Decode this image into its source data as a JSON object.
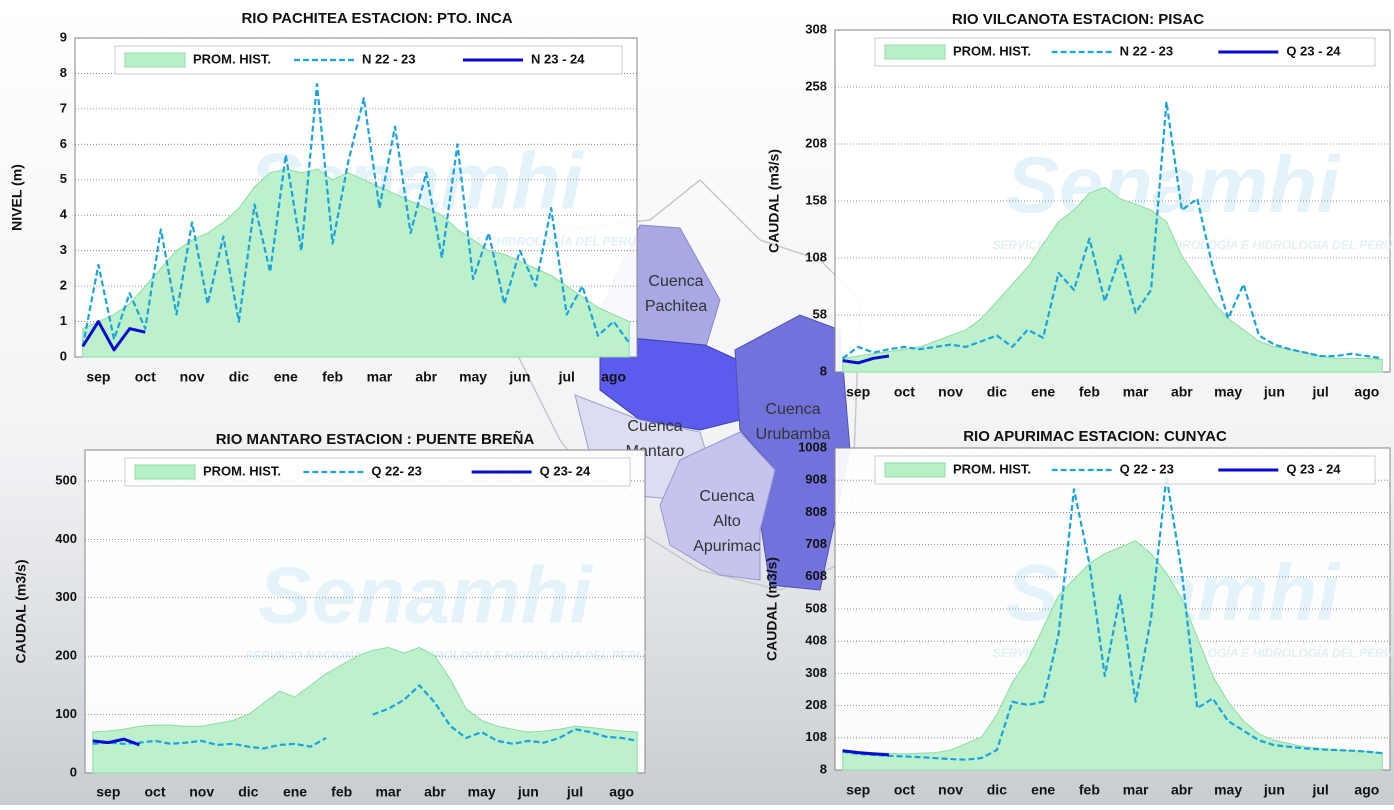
{
  "watermark": {
    "name": "Senamhi",
    "org": "SERVICIO NACIONAL DE METEOROLOGÍA E HIDROLOGÍA DEL PERÚ"
  },
  "map": {
    "labels": [
      [
        "Cuenca",
        "Pachitea"
      ],
      [
        "Cuenca",
        "Urubamba"
      ],
      [
        "Cuenca",
        "Mantaro"
      ],
      [
        "Cuenca",
        "Alto",
        "Apurimac"
      ]
    ]
  },
  "chart_data": [
    {
      "type": "line",
      "title": "RIO PACHITEA ESTACION: PTO. INCA",
      "y_label": "NIVEL (m)",
      "categories": [
        null,
        "sep",
        null,
        null,
        "oct",
        null,
        null,
        "nov",
        null,
        null,
        "dic",
        null,
        null,
        "ene",
        null,
        null,
        "feb",
        null,
        null,
        "mar",
        null,
        null,
        "abr",
        null,
        null,
        "may",
        null,
        null,
        "jun",
        null,
        null,
        "jul",
        null,
        null,
        "ago",
        null
      ],
      "ylim": [
        0,
        9
      ],
      "yticks": [
        0,
        1,
        2,
        3,
        4,
        5,
        6,
        7,
        8,
        9
      ],
      "grid": true,
      "series": [
        {
          "name": "PROM. HIST.",
          "style": "area",
          "color": "#b8f0c8",
          "values": [
            0.8,
            1.0,
            1.2,
            1.5,
            2.0,
            2.5,
            3.0,
            3.3,
            3.5,
            3.8,
            4.2,
            4.8,
            5.2,
            5.3,
            5.2,
            5.3,
            5.0,
            5.2,
            5.0,
            4.8,
            4.6,
            4.4,
            4.2,
            4.0,
            3.6,
            3.3,
            3.0,
            2.9,
            2.7,
            2.5,
            2.3,
            2.0,
            1.7,
            1.4,
            1.2,
            1.0
          ]
        },
        {
          "name": "N 22 - 23",
          "style": "dashed",
          "color": "#1ba3e0",
          "values": [
            0.3,
            2.6,
            0.5,
            1.8,
            0.8,
            3.6,
            1.2,
            3.8,
            1.5,
            3.4,
            1.0,
            4.3,
            2.4,
            5.7,
            3.0,
            7.7,
            3.2,
            5.5,
            7.3,
            4.2,
            6.5,
            3.5,
            5.2,
            2.8,
            6.0,
            2.2,
            3.5,
            1.5,
            3.0,
            2.0,
            4.2,
            1.2,
            2.0,
            0.6,
            1.0,
            0.4
          ]
        },
        {
          "name": "N 23 - 24",
          "style": "solid",
          "color": "#0a0ad0",
          "values": [
            0.3,
            1.0,
            0.2,
            0.8,
            0.7,
            null,
            null,
            null,
            null,
            null,
            null,
            null,
            null,
            null,
            null,
            null,
            null,
            null,
            null,
            null,
            null,
            null,
            null,
            null,
            null,
            null,
            null,
            null,
            null,
            null,
            null,
            null,
            null,
            null,
            null,
            null
          ]
        }
      ]
    },
    {
      "type": "line",
      "title": "RIO VILCANOTA ESTACION: PISAC",
      "y_label": "CAUDAL (m3/s)",
      "categories": [
        null,
        "sep",
        null,
        null,
        "oct",
        null,
        null,
        "nov",
        null,
        null,
        "dic",
        null,
        null,
        "ene",
        null,
        null,
        "feb",
        null,
        null,
        "mar",
        null,
        null,
        "abr",
        null,
        null,
        "may",
        null,
        null,
        "jun",
        null,
        null,
        "jul",
        null,
        null,
        "ago",
        null
      ],
      "ylim": [
        8,
        308
      ],
      "yticks": [
        8,
        58,
        108,
        158,
        208,
        258,
        308
      ],
      "grid": true,
      "series": [
        {
          "name": "PROM. HIST.",
          "style": "area",
          "color": "#b8f0c8",
          "values": [
            20,
            22,
            24,
            26,
            28,
            30,
            35,
            40,
            45,
            55,
            70,
            85,
            100,
            120,
            140,
            150,
            165,
            170,
            160,
            155,
            150,
            140,
            110,
            90,
            70,
            55,
            45,
            35,
            30,
            28,
            25,
            22,
            20,
            20,
            20,
            19
          ]
        },
        {
          "name": "N 22 - 23",
          "style": "dashed",
          "color": "#1ba3e0",
          "values": [
            20,
            30,
            25,
            28,
            30,
            28,
            30,
            32,
            30,
            35,
            40,
            30,
            45,
            38,
            95,
            80,
            125,
            70,
            110,
            60,
            80,
            245,
            150,
            160,
            100,
            55,
            85,
            40,
            32,
            28,
            25,
            22,
            22,
            24,
            22,
            20
          ]
        },
        {
          "name": "Q 23 - 24",
          "style": "solid",
          "color": "#0a0ad0",
          "values": [
            18,
            16,
            20,
            22,
            null,
            null,
            null,
            null,
            null,
            null,
            null,
            null,
            null,
            null,
            null,
            null,
            null,
            null,
            null,
            null,
            null,
            null,
            null,
            null,
            null,
            null,
            null,
            null,
            null,
            null,
            null,
            null,
            null,
            null,
            null,
            null
          ]
        }
      ]
    },
    {
      "type": "line",
      "title": "RIO MANTARO ESTACION : PUENTE BREÑA",
      "y_label": "CAUDAL (m3/s)",
      "categories": [
        null,
        "sep",
        null,
        null,
        "oct",
        null,
        null,
        "nov",
        null,
        null,
        "dic",
        null,
        null,
        "ene",
        null,
        null,
        "feb",
        null,
        null,
        "mar",
        null,
        null,
        "abr",
        null,
        null,
        "may",
        null,
        null,
        "jun",
        null,
        null,
        "jul",
        null,
        null,
        "ago",
        null
      ],
      "ylim": [
        0,
        553
      ],
      "yticks": [
        0,
        100,
        200,
        300,
        400,
        500
      ],
      "grid": true,
      "series": [
        {
          "name": "PROM. HIST.",
          "style": "area",
          "color": "#b8f0c8",
          "values": [
            70,
            72,
            75,
            80,
            82,
            82,
            80,
            80,
            85,
            90,
            100,
            120,
            140,
            130,
            150,
            170,
            185,
            200,
            210,
            215,
            205,
            215,
            200,
            160,
            110,
            90,
            80,
            75,
            70,
            72,
            75,
            80,
            78,
            75,
            72,
            70
          ]
        },
        {
          "name": "Q 22- 23",
          "style": "dashed",
          "color": "#1ba3e0",
          "values": [
            50,
            52,
            50,
            52,
            55,
            50,
            52,
            55,
            48,
            50,
            45,
            42,
            48,
            50,
            45,
            60,
            null,
            null,
            100,
            110,
            125,
            150,
            120,
            80,
            60,
            70,
            55,
            50,
            55,
            52,
            60,
            75,
            70,
            62,
            60,
            55
          ]
        },
        {
          "name": "Q 23- 24",
          "style": "solid",
          "color": "#0a0ad0",
          "values": [
            55,
            52,
            58,
            48,
            null,
            null,
            null,
            null,
            null,
            null,
            null,
            null,
            null,
            null,
            null,
            null,
            null,
            null,
            null,
            null,
            null,
            null,
            null,
            null,
            null,
            null,
            null,
            null,
            null,
            null,
            null,
            null,
            null,
            null,
            null,
            null
          ]
        }
      ]
    },
    {
      "type": "line",
      "title": "RIO APURIMAC ESTACION: CUNYAC",
      "y_label": "CAUDAL (m3/s)",
      "categories": [
        null,
        "sep",
        null,
        null,
        "oct",
        null,
        null,
        "nov",
        null,
        null,
        "dic",
        null,
        null,
        "ene",
        null,
        null,
        "feb",
        null,
        null,
        "mar",
        null,
        null,
        "abr",
        null,
        null,
        "may",
        null,
        null,
        "jun",
        null,
        null,
        "jul",
        null,
        null,
        "ago",
        null
      ],
      "ylim": [
        8,
        1008
      ],
      "yticks": [
        8,
        108,
        208,
        308,
        408,
        508,
        608,
        708,
        808,
        908,
        1008
      ],
      "grid": true,
      "series": [
        {
          "name": "PROM. HIST.",
          "style": "area",
          "color": "#b8f0c8",
          "values": [
            70,
            65,
            62,
            60,
            58,
            60,
            62,
            70,
            90,
            110,
            180,
            280,
            350,
            450,
            550,
            600,
            650,
            680,
            700,
            720,
            680,
            620,
            540,
            420,
            300,
            220,
            160,
            120,
            100,
            90,
            80,
            75,
            70,
            68,
            65,
            62
          ]
        },
        {
          "name": "Q 22 - 23",
          "style": "dashed",
          "color": "#1ba3e0",
          "values": [
            65,
            58,
            55,
            52,
            50,
            48,
            45,
            42,
            40,
            45,
            70,
            220,
            210,
            220,
            430,
            880,
            650,
            300,
            550,
            220,
            480,
            920,
            620,
            200,
            230,
            160,
            130,
            100,
            85,
            80,
            75,
            72,
            70,
            68,
            65,
            60
          ]
        },
        {
          "name": "Q 23 - 24",
          "style": "solid",
          "color": "#0a0ad0",
          "values": [
            68,
            62,
            58,
            55,
            null,
            null,
            null,
            null,
            null,
            null,
            null,
            null,
            null,
            null,
            null,
            null,
            null,
            null,
            null,
            null,
            null,
            null,
            null,
            null,
            null,
            null,
            null,
            null,
            null,
            null,
            null,
            null,
            null,
            null,
            null,
            null
          ]
        }
      ]
    }
  ]
}
